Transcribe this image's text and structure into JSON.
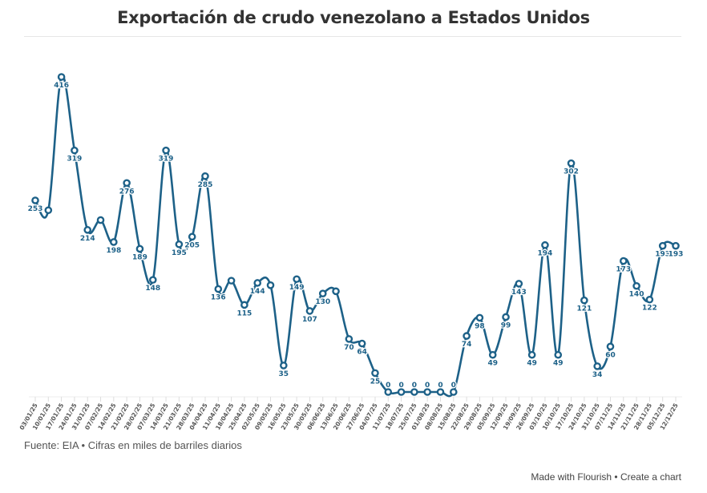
{
  "chart_data": {
    "type": "line",
    "title": "Exportación de crudo venezolano a Estados Unidos",
    "x": [
      "03/01/25",
      "10/01/25",
      "17/01/25",
      "24/01/25",
      "31/01/25",
      "07/02/25",
      "14/02/25",
      "21/02/25",
      "28/02/25",
      "07/03/25",
      "14/03/25",
      "21/03/25",
      "28/03/25",
      "04/04/25",
      "11/04/25",
      "18/04/25",
      "25/04/25",
      "02/05/25",
      "09/05/25",
      "16/05/25",
      "23/05/25",
      "30/05/25",
      "06/06/25",
      "13/06/25",
      "20/06/25",
      "27/06/25",
      "04/07/25",
      "11/07/25",
      "18/07/25",
      "25/07/25",
      "01/08/25",
      "08/08/25",
      "15/08/25",
      "22/08/25",
      "29/08/25",
      "05/09/25",
      "12/09/25",
      "19/09/25",
      "26/09/25",
      "03/10/25",
      "10/10/25",
      "17/10/25",
      "24/10/25",
      "31/10/25",
      "07/11/25",
      "14/11/25",
      "21/11/25",
      "28/11/25",
      "05/12/25",
      "12/12/25"
    ],
    "values": [
      253,
      240,
      416,
      319,
      214,
      227,
      198,
      276,
      189,
      148,
      319,
      195,
      205,
      285,
      136,
      147,
      115,
      144,
      141,
      35,
      149,
      107,
      130,
      133,
      70,
      64,
      25,
      0,
      0,
      0,
      0,
      0,
      0,
      74,
      98,
      49,
      99,
      143,
      49,
      194,
      49,
      302,
      121,
      34,
      60,
      173,
      140,
      122,
      193,
      193
    ],
    "data_labels": [
      "253",
      null,
      "416",
      "319",
      "214",
      null,
      "198",
      "276",
      "189",
      "148",
      "319",
      "195",
      "205",
      "285",
      "136",
      null,
      "115",
      "144",
      null,
      "35",
      "149",
      "107",
      "130",
      null,
      "70",
      "64",
      "25",
      "0",
      "0",
      "0",
      "0",
      "0",
      "0",
      "74",
      "98",
      "49",
      "99",
      "143",
      "49",
      "194",
      "49",
      "302",
      "121",
      "34",
      "60",
      "173",
      "140",
      "122",
      "193",
      "193"
    ],
    "ylim": [
      0,
      416
    ],
    "grid": false,
    "line_color": "#1d6188",
    "marker": "hollow-circle"
  },
  "footer": {
    "source": "Fuente: EIA • Cifras en miles de barriles diarios",
    "made_with": "Made with Flourish",
    "separator": " • ",
    "create": "Create a chart"
  }
}
